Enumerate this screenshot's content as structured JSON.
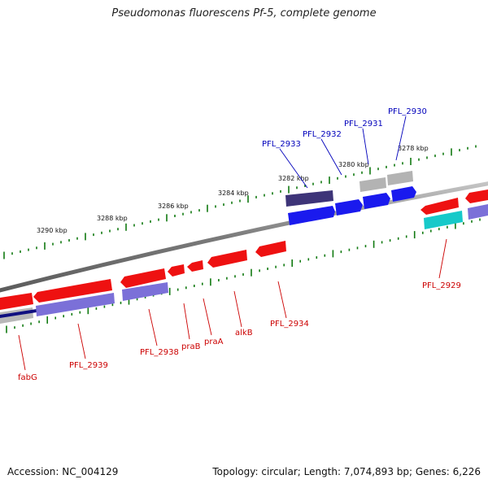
{
  "title": "Pseudomonas fluorescens Pf-5, complete genome",
  "footer": {
    "accession": "Accession: NC_004129",
    "summary": "Topology: circular; Length: 7,074,893 bp; Genes: 6,226"
  },
  "colors": {
    "backbone": "#777777",
    "forward_gene": "#1a1aee",
    "forward_dark": "#3d3478",
    "forward_grey": "#b3b3b3",
    "reverse_gene": "#ee1111",
    "reverse_cds_purple": "#7b70d8",
    "reverse_teal": "#17c9c9",
    "reverse_navy": "#101080",
    "tick": "#117a11",
    "label_blue": "#0000bb",
    "label_red": "#cc0000"
  },
  "scale": {
    "tick_labels": [
      "3290 kbp",
      "3288 kbp",
      "3286 kbp",
      "3284 kbp",
      "3282 kbp",
      "3280 kbp",
      "3278 kbp"
    ]
  },
  "forward_labels": [
    "PFL_2933",
    "PFL_2932",
    "PFL_2931",
    "PFL_2930"
  ],
  "reverse_labels": [
    "fabG",
    "PFL_2939",
    "PFL_2938",
    "praB",
    "praA",
    "alkB",
    "PFL_2934",
    "PFL_2929"
  ]
}
